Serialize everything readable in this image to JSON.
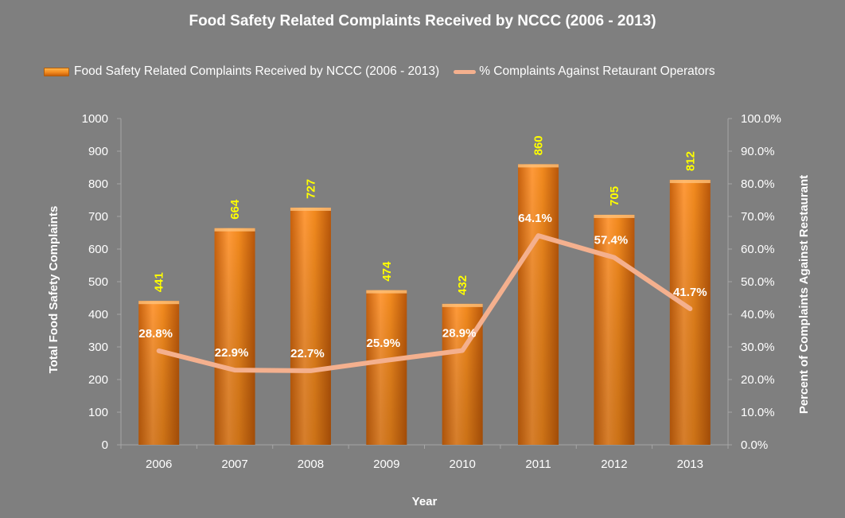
{
  "chart_data": {
    "type": "bar",
    "title": "Food Safety Related Complaints Received by NCCC (2006 - 2013)",
    "categories": [
      "2006",
      "2007",
      "2008",
      "2009",
      "2010",
      "2011",
      "2012",
      "2013"
    ],
    "series": [
      {
        "name": "Food Safety Related Complaints Received by NCCC (2006 - 2013)",
        "type": "bar",
        "axis": "left",
        "values": [
          441,
          664,
          727,
          474,
          432,
          860,
          705,
          812
        ],
        "labels": [
          "441",
          "664",
          "727",
          "474",
          "432",
          "860",
          "705",
          "812"
        ]
      },
      {
        "name": "% Complaints Against Retaurant Operators",
        "type": "line",
        "axis": "right",
        "values": [
          28.8,
          22.9,
          22.7,
          25.9,
          28.9,
          64.1,
          57.4,
          41.7
        ],
        "labels": [
          "28.8%",
          "22.9%",
          "22.7%",
          "25.9%",
          "28.9%",
          "64.1%",
          "57.4%",
          "41.7%"
        ]
      }
    ],
    "xlabel": "Year",
    "ylabel": "Total Food Safety Complaints",
    "y2label": "Percent of Complaints Against Restaurant",
    "ylim": [
      0,
      1000
    ],
    "y2lim": [
      0,
      100
    ],
    "yticks": [
      "0",
      "100",
      "200",
      "300",
      "400",
      "500",
      "600",
      "700",
      "800",
      "900",
      "1000"
    ],
    "y2ticks": [
      "0.0%",
      "10.0%",
      "20.0%",
      "30.0%",
      "40.0%",
      "50.0%",
      "60.0%",
      "70.0%",
      "80.0%",
      "90.0%",
      "100.0%"
    ],
    "legend_position": "top",
    "grid": false,
    "colors": {
      "background": "#7f7f7f",
      "bar": "#f28a1e",
      "bar_light": "#ffb347",
      "bar_dark": "#c65f0c",
      "line": "#f4b08e",
      "bar_label": "#ffff00",
      "line_label": "#ffffff",
      "text": "#ffffff",
      "axis": "#a6a6a6"
    }
  }
}
